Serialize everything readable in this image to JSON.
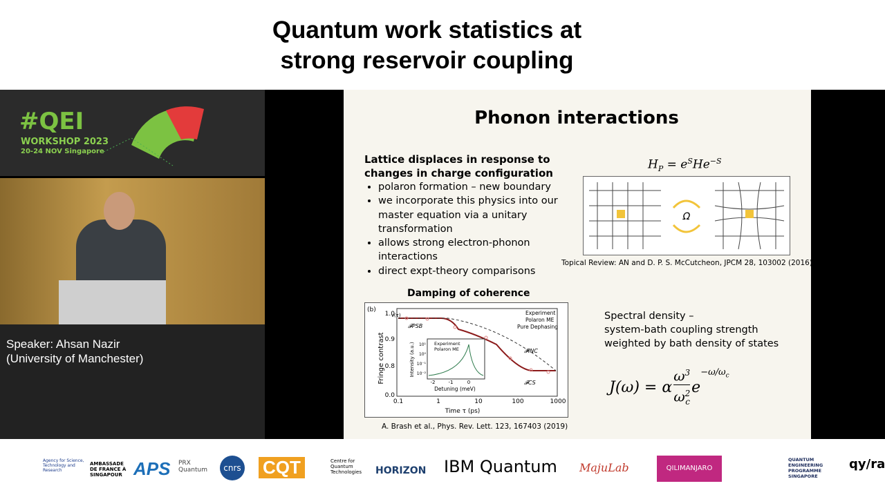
{
  "header": {
    "title_lines": [
      "Quantum  work statistics at",
      "strong reservoir coupling"
    ]
  },
  "sidebar": {
    "logo": "#QEI",
    "workshop": "WORKSHOP 2023",
    "dates": "20-24 NOV Singapore",
    "speaker_lines": [
      "Speaker: Ahsan Nazir",
      "(University of Manchester)"
    ]
  },
  "slide": {
    "title": "Phonon interactions",
    "lead": "Lattice displaces in response to changes in charge configuration",
    "bullets": [
      "polaron formation – new boundary",
      "we incorporate this physics into our master equation via a unitary transformation",
      "allows strong electron-phonon interactions",
      "direct expt-theory comparisons"
    ],
    "equation_hp": {
      "lhs": "H",
      "lhs_sub": "P",
      "mid": " = e",
      "sup1": "S",
      "mid2": "He",
      "sup2": "−S"
    },
    "diagram_label": "Ω",
    "topical_review": "Topical Review: AN and D. P. S. McCutcheon, JPCM 28, 103002 (2016)",
    "figure_title": "Damping of coherence",
    "figure": {
      "panel": "(b)",
      "ylabel": "Fringe contrast",
      "y_symbol": "ν(τ)",
      "xlabel": "Time τ (ps)",
      "yticks": [
        "1.0",
        "0.9",
        "0.8",
        "0.0"
      ],
      "xticks": [
        "0.1",
        "1",
        "10",
        "100",
        "1000"
      ],
      "legend": [
        "Experiment",
        "Polaron ME",
        "Pure Dephasing"
      ],
      "annotations": [
        "𝓕PSB",
        "𝓕INC",
        "𝓕CS"
      ],
      "inset": {
        "legend": [
          "Experiment",
          "Polaron ME"
        ],
        "ylabel": "Intensity (a.u.)",
        "xlabel": "Detuning (meV)",
        "xticks": [
          "-2",
          "-1",
          "0"
        ],
        "yticks": [
          "10¹",
          "10⁰",
          "10⁻¹",
          "10⁻²"
        ]
      }
    },
    "figure_caption": "A. Brash et al.,  Phys. Rev. Lett. 123, 167403 (2019)",
    "spectral_lines": [
      "Spectral density –",
      "system-bath coupling strength",
      "weighted by bath density of states"
    ],
    "equation_j": {
      "lhs": "J(ω) = α",
      "num": "ω",
      "num_sup": "3",
      "den": "ω",
      "den_sub": "c",
      "den_sup": "2",
      "e": "e",
      "exp": "−ω/ω",
      "exp_sub": "c"
    }
  },
  "sponsors": [
    "Agency for Science, Technology and Research",
    "AMBASSADE DE FRANCE À SINGAPOUR",
    "APS",
    "PRX Quantum",
    "cnrs",
    "CQT",
    "Centre for Quantum Technologies",
    "HORIZON",
    "IBM Quantum",
    "MajuLab",
    "QILIMANJARO",
    "QUANTUM ENGINEERING PROGRAMME SINGAPORE",
    "qy/ra"
  ]
}
